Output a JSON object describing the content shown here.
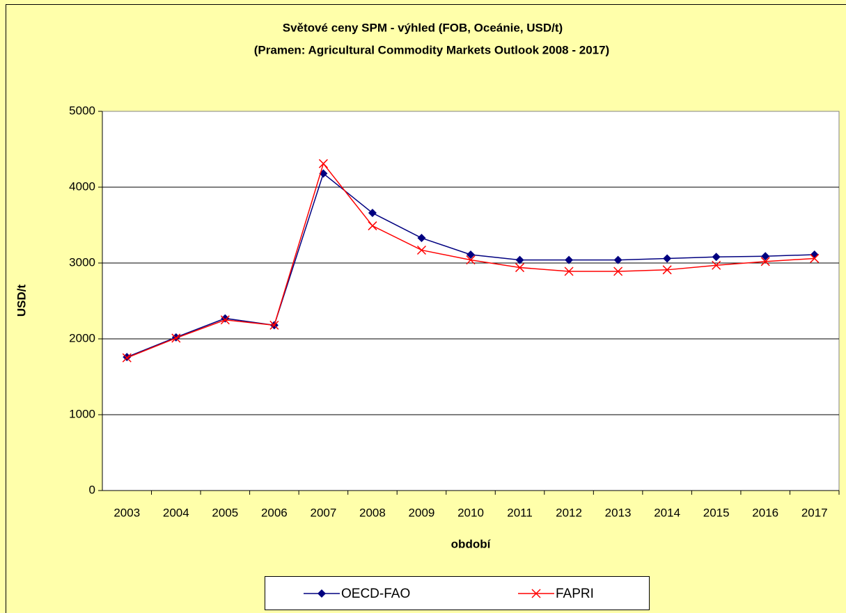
{
  "chart_data": {
    "type": "line",
    "title": "Světové ceny SPM - výhled  (FOB, Oceánie, USD/t)",
    "subtitle": "(Pramen: Agricultural Commodity Markets Outlook 2008 - 2017)",
    "x_label": "období",
    "y_label": "USD/t",
    "categories": [
      "2003",
      "2004",
      "2005",
      "2006",
      "2007",
      "2008",
      "2009",
      "2010",
      "2011",
      "2012",
      "2013",
      "2014",
      "2015",
      "2016",
      "2017"
    ],
    "series": [
      {
        "name": "OECD-FAO",
        "color": "#000080",
        "marker": "diamond",
        "values": [
          1760,
          2020,
          2270,
          2180,
          4180,
          3660,
          3330,
          3110,
          3040,
          3040,
          3040,
          3060,
          3080,
          3090,
          3110
        ]
      },
      {
        "name": "FAPRI",
        "color": "#ff0000",
        "marker": "x",
        "values": [
          1750,
          2010,
          2250,
          2180,
          4310,
          3490,
          3170,
          3040,
          2940,
          2890,
          2890,
          2910,
          2970,
          3020,
          3060
        ]
      }
    ],
    "ylim": [
      0,
      5000
    ],
    "yticks": [
      0,
      1000,
      2000,
      3000,
      4000,
      5000
    ],
    "grid": true,
    "legend": "bottom"
  }
}
